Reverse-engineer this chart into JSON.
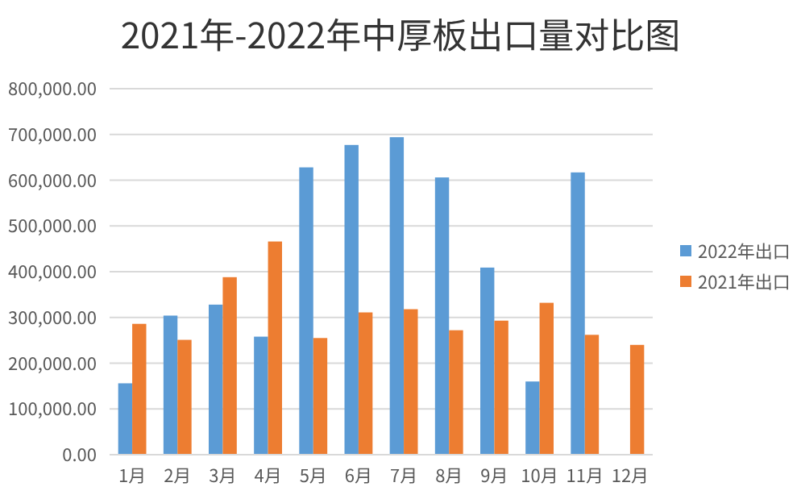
{
  "chart_data": {
    "type": "bar",
    "title": "2021年-2022年中厚板出口量对比图",
    "categories": [
      "1月",
      "2月",
      "3月",
      "4月",
      "5月",
      "6月",
      "7月",
      "8月",
      "9月",
      "10月",
      "11月",
      "12月"
    ],
    "series": [
      {
        "name": "2022年出口",
        "color": "#5b9bd5",
        "values": [
          156000,
          304000,
          328000,
          258000,
          628000,
          677000,
          694000,
          606000,
          409000,
          160000,
          617000,
          null
        ]
      },
      {
        "name": "2021年出口",
        "color": "#ed7d31",
        "values": [
          286000,
          251000,
          388000,
          466000,
          255000,
          311000,
          318000,
          272000,
          293000,
          332000,
          262000,
          240000
        ]
      }
    ],
    "ylim": [
      0,
      800000
    ],
    "yticks": [
      {
        "value": 0,
        "label": "0.00"
      },
      {
        "value": 100000,
        "label": "100,000.00"
      },
      {
        "value": 200000,
        "label": "200,000.00"
      },
      {
        "value": 300000,
        "label": "300,000.00"
      },
      {
        "value": 400000,
        "label": "400,000.00"
      },
      {
        "value": 500000,
        "label": "500,000.00"
      },
      {
        "value": 600000,
        "label": "600,000.00"
      },
      {
        "value": 700000,
        "label": "700,000.00"
      },
      {
        "value": 800000,
        "label": "800,000.00"
      }
    ],
    "grid": "y",
    "legend": "right"
  }
}
